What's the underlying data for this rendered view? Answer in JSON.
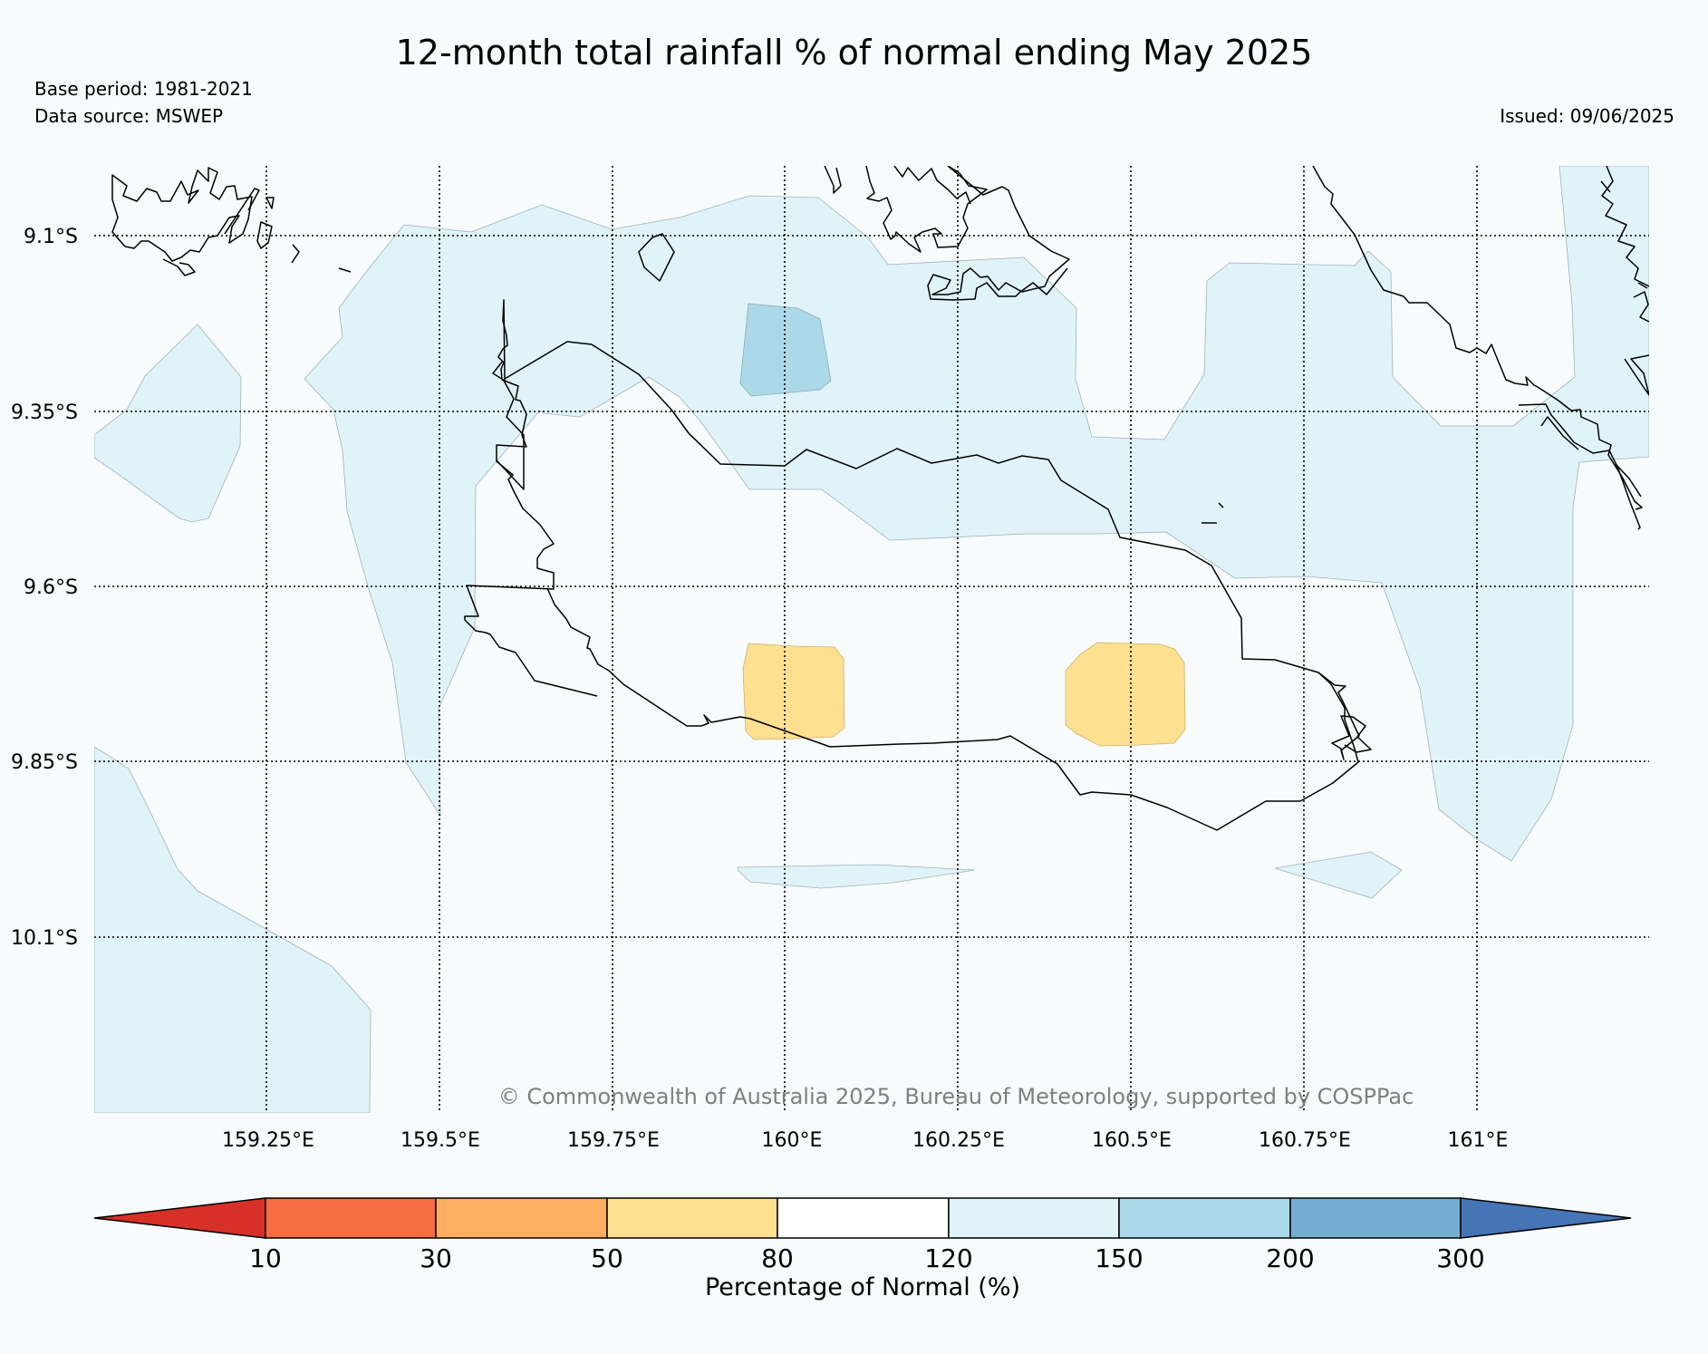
{
  "title": "12-month total rainfall % of normal ending May 2025",
  "base_period": "Base period: 1981-2021",
  "data_source": "Data source: MSWEP",
  "issued": "Issued: 09/06/2025",
  "copyright": "© Commonwealth of Australia 2025, Bureau of Meteorology, supported by COSPPac",
  "lat_labels": [
    "9.1°S",
    "9.35°S",
    "9.6°S",
    "9.85°S",
    "10.1°S"
  ],
  "lon_labels": [
    "159.25°E",
    "159.5°E",
    "159.75°E",
    "160°E",
    "160.25°E",
    "160.5°E",
    "160.75°E",
    "161°E"
  ],
  "colorbar": {
    "label": "Percentage of Normal (%)",
    "ticks": [
      "10",
      "30",
      "50",
      "80",
      "120",
      "150",
      "200",
      "300"
    ],
    "colors": [
      "#d73027",
      "#f46d43",
      "#fdae61",
      "#fee090",
      "#ffffff",
      "#e0f3f8",
      "#abd9e9",
      "#74add1",
      "#4575b4"
    ]
  },
  "chart_data": {
    "type": "map",
    "lat_ticks": [
      -9.1,
      -9.35,
      -9.6,
      -9.85,
      -10.1
    ],
    "lon_ticks": [
      159.25,
      159.5,
      159.75,
      160.0,
      160.25,
      160.5,
      160.75,
      161.0
    ],
    "colorbar_bins": [
      10,
      30,
      50,
      80,
      120,
      150,
      200,
      300
    ],
    "colors": {
      "120-150": "#e0f3f8",
      "150-200": "#abd9e9",
      "50-80": "#fee090"
    }
  }
}
